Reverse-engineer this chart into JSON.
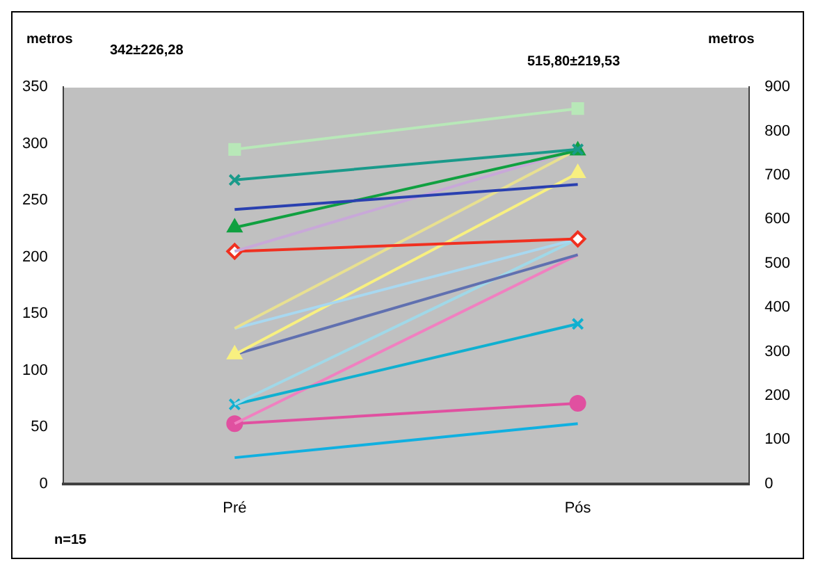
{
  "chart_data": {
    "type": "line",
    "categories": [
      "Pré",
      "Pós"
    ],
    "ylabel": "metros",
    "y2label": "metros",
    "ylim": [
      0,
      350
    ],
    "yticks": [
      0,
      50,
      100,
      150,
      200,
      250,
      300,
      350
    ],
    "y2lim": [
      0,
      900
    ],
    "y2ticks": [
      0,
      100,
      200,
      300,
      400,
      500,
      600,
      700,
      800,
      900
    ],
    "grid": false,
    "legend": false,
    "annotations": [
      "342±226,28",
      "515,80±219,53",
      "n=15"
    ],
    "series": [
      {
        "color": "#b8e8b8",
        "marker": "square",
        "values": [
          295,
          331
        ]
      },
      {
        "color": "#1a9a8a",
        "marker": "cross",
        "values": [
          268,
          295
        ]
      },
      {
        "color": "#2a40b0",
        "marker": "none",
        "values": [
          242,
          264
        ]
      },
      {
        "color": "#10a040",
        "marker": "triangle",
        "values": [
          226,
          294
        ]
      },
      {
        "color": "#c8a8d8",
        "marker": "none",
        "values": [
          205,
          295
        ]
      },
      {
        "color": "#f03020",
        "marker": "diamond",
        "values": [
          205,
          216
        ]
      },
      {
        "color": "#e8e090",
        "marker": "none",
        "values": [
          137,
          295
        ]
      },
      {
        "color": "#a8d8f0",
        "marker": "none",
        "values": [
          137,
          216
        ]
      },
      {
        "color": "#f8f080",
        "marker": "triangle",
        "values": [
          114,
          274
        ]
      },
      {
        "color": "#6070b0",
        "marker": "none",
        "values": [
          114,
          202
        ]
      },
      {
        "color": "#a0d8e8",
        "marker": "none",
        "values": [
          70,
          216
        ]
      },
      {
        "color": "#10b0d0",
        "marker": "cross",
        "values": [
          70,
          141
        ]
      },
      {
        "color": "#f080c0",
        "marker": "none",
        "values": [
          53,
          202
        ]
      },
      {
        "color": "#e050a0",
        "marker": "circle",
        "values": [
          53,
          71
        ]
      },
      {
        "color": "#10b0e0",
        "marker": "none",
        "values": [
          23,
          53
        ]
      }
    ]
  }
}
